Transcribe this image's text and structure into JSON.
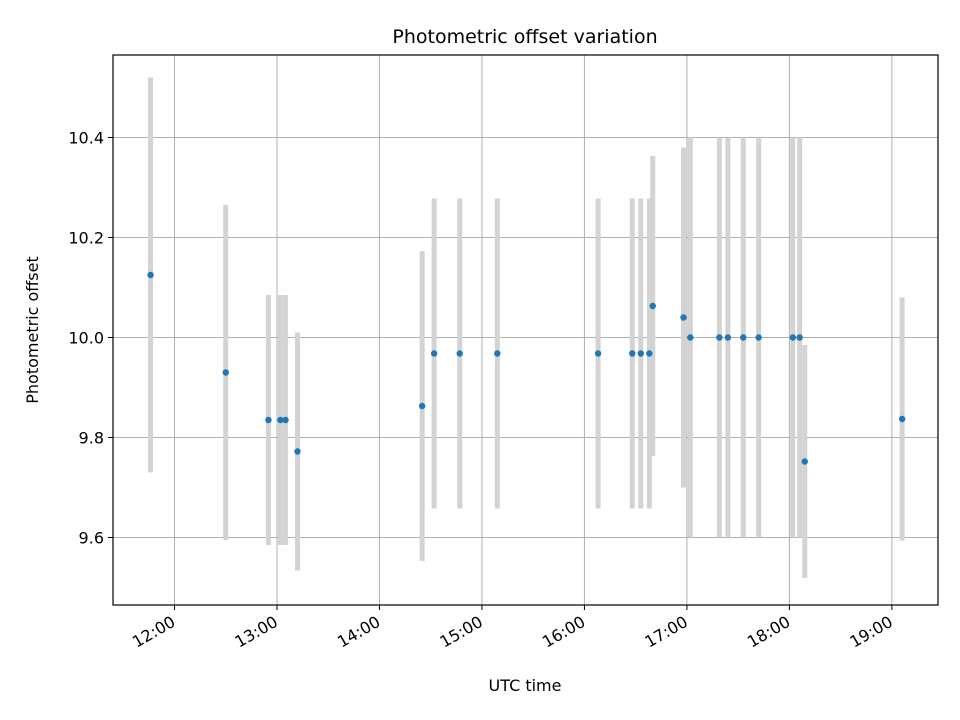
{
  "chart_data": {
    "type": "scatter",
    "title": "Photometric offset variation",
    "xlabel": "UTC time",
    "ylabel": "Photometric offset",
    "x_ticks": [
      "12:00",
      "13:00",
      "14:00",
      "15:00",
      "16:00",
      "17:00",
      "18:00",
      "19:00"
    ],
    "y_ticks": [
      "9.6",
      "9.8",
      "10.0",
      "10.2",
      "10.4"
    ],
    "xlim": [
      "11:24",
      "19:27"
    ],
    "ylim": [
      9.465,
      10.565
    ],
    "grid": true,
    "colors": {
      "point": "#1f77b4",
      "errorbar": "#d3d3d3",
      "grid": "#b0b0b0"
    },
    "series": [
      {
        "points": [
          {
            "x": "11:46",
            "y": 10.125,
            "err": 0.395
          },
          {
            "x": "12:30",
            "y": 9.93,
            "err": 0.335
          },
          {
            "x": "12:55",
            "y": 9.835,
            "err": 0.25
          },
          {
            "x": "13:02",
            "y": 9.835,
            "err": 0.25
          },
          {
            "x": "13:05",
            "y": 9.835,
            "err": 0.25
          },
          {
            "x": "13:12",
            "y": 9.772,
            "err": 0.238
          },
          {
            "x": "14:25",
            "y": 9.863,
            "err": 0.31
          },
          {
            "x": "14:32",
            "y": 9.968,
            "err": 0.31
          },
          {
            "x": "14:47",
            "y": 9.968,
            "err": 0.31
          },
          {
            "x": "15:09",
            "y": 9.968,
            "err": 0.31
          },
          {
            "x": "16:08",
            "y": 9.968,
            "err": 0.31
          },
          {
            "x": "16:28",
            "y": 9.968,
            "err": 0.31
          },
          {
            "x": "16:33",
            "y": 9.968,
            "err": 0.31
          },
          {
            "x": "16:38",
            "y": 9.968,
            "err": 0.31
          },
          {
            "x": "16:40",
            "y": 10.063,
            "err": 0.3
          },
          {
            "x": "16:58",
            "y": 10.04,
            "err": 0.34
          },
          {
            "x": "17:02",
            "y": 10.0,
            "err": 0.4
          },
          {
            "x": "17:19",
            "y": 10.0,
            "err": 0.4
          },
          {
            "x": "17:24",
            "y": 10.0,
            "err": 0.4
          },
          {
            "x": "17:33",
            "y": 10.0,
            "err": 0.4
          },
          {
            "x": "17:42",
            "y": 10.0,
            "err": 0.4
          },
          {
            "x": "18:02",
            "y": 10.0,
            "err": 0.4
          },
          {
            "x": "18:06",
            "y": 10.0,
            "err": 0.4
          },
          {
            "x": "18:09",
            "y": 9.752,
            "err": 0.233
          },
          {
            "x": "19:06",
            "y": 9.837,
            "err": 0.243
          }
        ]
      }
    ]
  }
}
